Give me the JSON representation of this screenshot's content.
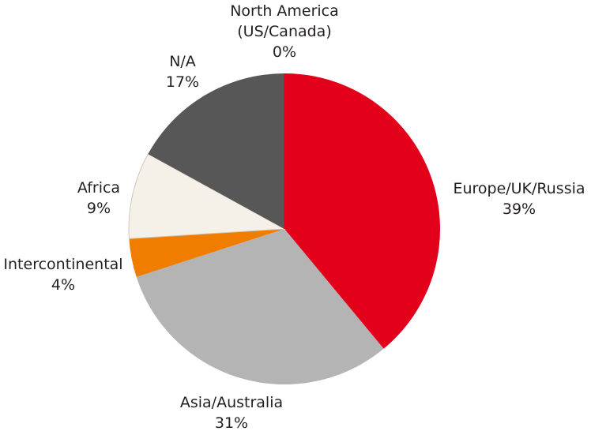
{
  "chart_data": {
    "type": "pie",
    "start_angle_deg": 0,
    "direction": "clockwise",
    "slices": [
      {
        "name": "North America (US/Canada)",
        "label_lines": [
          "North America",
          "(US/Canada)"
        ],
        "value_label": "0%",
        "value": 0,
        "color": "#e2001a",
        "stroke": "none"
      },
      {
        "name": "Europe/UK/Russia",
        "label_lines": [
          "Europe/UK/Russia"
        ],
        "value_label": "39%",
        "value": 39,
        "color": "#e2001a",
        "stroke": "none"
      },
      {
        "name": "Asia/Australia",
        "label_lines": [
          "Asia/Australia"
        ],
        "value_label": "31%",
        "value": 31,
        "color": "#b4b4b4",
        "stroke": "none"
      },
      {
        "name": "Intercontinental",
        "label_lines": [
          "Intercontinental"
        ],
        "value_label": "4%",
        "value": 4,
        "color": "#f07d00",
        "stroke": "none"
      },
      {
        "name": "Africa",
        "label_lines": [
          "Africa"
        ],
        "value_label": "9%",
        "value": 9,
        "color": "#f5f0e8",
        "stroke": "#cfc8bd"
      },
      {
        "name": "N/A",
        "label_lines": [
          "N/A"
        ],
        "value_label": "17%",
        "value": 17,
        "color": "#575757",
        "stroke": "none"
      }
    ],
    "legend": "none"
  }
}
